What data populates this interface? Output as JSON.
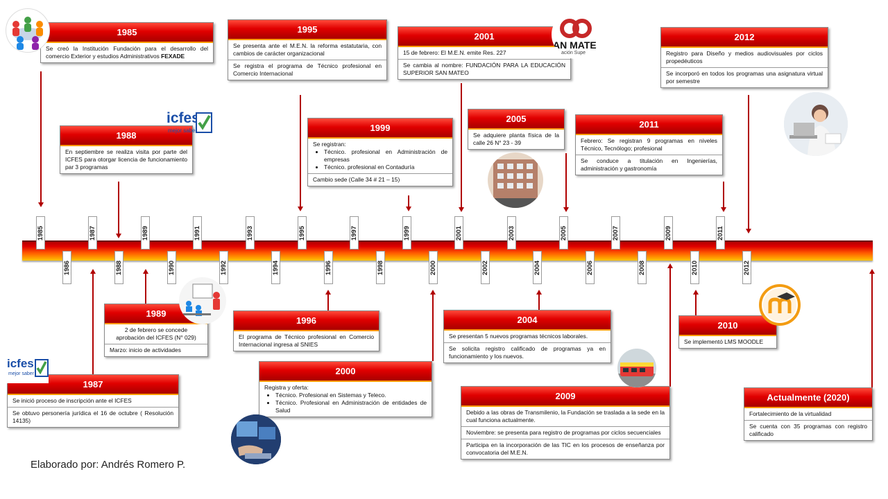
{
  "ticks": [
    {
      "year": "1985",
      "pos": "up"
    },
    {
      "year": "1986",
      "pos": "down"
    },
    {
      "year": "1987",
      "pos": "up"
    },
    {
      "year": "1988",
      "pos": "down"
    },
    {
      "year": "1989",
      "pos": "up"
    },
    {
      "year": "1990",
      "pos": "down"
    },
    {
      "year": "1991",
      "pos": "up"
    },
    {
      "year": "1992",
      "pos": "down"
    },
    {
      "year": "1993",
      "pos": "up"
    },
    {
      "year": "1994",
      "pos": "down"
    },
    {
      "year": "1995",
      "pos": "up"
    },
    {
      "year": "1996",
      "pos": "down"
    },
    {
      "year": "1997",
      "pos": "up"
    },
    {
      "year": "1998",
      "pos": "down"
    },
    {
      "year": "1999",
      "pos": "up"
    },
    {
      "year": "2000",
      "pos": "down"
    },
    {
      "year": "2001",
      "pos": "up"
    },
    {
      "year": "2002",
      "pos": "down"
    },
    {
      "year": "2003",
      "pos": "up"
    },
    {
      "year": "2004",
      "pos": "down"
    },
    {
      "year": "2005",
      "pos": "up"
    },
    {
      "year": "2006",
      "pos": "down"
    },
    {
      "year": "2007",
      "pos": "up"
    },
    {
      "year": "2008",
      "pos": "down"
    },
    {
      "year": "2009",
      "pos": "up"
    },
    {
      "year": "2010",
      "pos": "down"
    },
    {
      "year": "2011",
      "pos": "up"
    },
    {
      "year": "2012",
      "pos": "down"
    }
  ],
  "events": {
    "e1985": {
      "title": "1985",
      "r1": "Se creó la Institución Fundación para el desarrollo del comercio Exterior  y estudios Administrativos ",
      "r1b": "FEXADE"
    },
    "e1988": {
      "title": "1988",
      "r1": "En septiembre se realiza visita por parte del ICFES para otorgar licencia de funcionamiento par 3 programas"
    },
    "e1995": {
      "title": "1995",
      "r1": "Se presenta ante el M.E.N. la reforma estatutaria, con cambios de carácter organizacional",
      "r2": "Se registra el programa de Técnico profesional en Comercio Internacional"
    },
    "e1999": {
      "title": "1999",
      "r1": "Se registran:",
      "b1": "Técnico. profesional en Administración de empresas",
      "b2": "Técnico. profesional en Contaduría",
      "r2": "Cambio sede (Calle 34 # 21 – 15)"
    },
    "e2001": {
      "title": "2001",
      "r1": "15 de febrero: El M.E.N. emite Res. 227",
      "r2": "Se cambia al nombre: FUNDACIÓN PARA LA EDUCACIÓN SUPERIOR SAN MATEO"
    },
    "e2005": {
      "title": "2005",
      "r1": "Se adquiere planta física de la calle 26 N° 23 - 39"
    },
    "e2011": {
      "title": "2011",
      "r1": "Febrero: Se registran 9 programas en niveles Técnico, Tecnólogo; profesional",
      "r2": "Se conduce a titulación en Ingenierías, administración y gastronomía"
    },
    "e2012": {
      "title": "2012",
      "r1": "Registro para Diseño y medios audiovisuales por ciclos propedéuticos",
      "r2": "Se incorporó en todos los programas una asignatura virtual por semestre"
    },
    "e1989": {
      "title": "1989",
      "r1": "2 de febrero se concede aprobación del ICFES (N° 029)",
      "r2": "Marzo: inicio de actividades"
    },
    "e1987": {
      "title": "1987",
      "r1": "Se inició proceso de inscripción ante el ICFES",
      "r2": "Se obtuvo personería jurídica el 16 de octubre ( Resolución 14135)"
    },
    "e1996": {
      "title": "1996",
      "r1": "El programa de Técnico profesional en Comercio Internacional ingresa al SNIES"
    },
    "e2000": {
      "title": "2000",
      "r1": "Registra y oferta:",
      "b1": "Técnico. Profesional en Sistemas y Teleco.",
      "b2": "Técnico. Profesional en Administración de entidades de Salud"
    },
    "e2004": {
      "title": "2004",
      "r1": "Se presentan 5 nuevos programas técnicos laborales.",
      "r2": "Se solicita registro calificado de programas ya en funcionamiento y los nuevos."
    },
    "e2009": {
      "title": "2009",
      "r1": "Debido a las obras de Transmilenio, la Fundación se traslada a la sede en la cual funciona actualmente.",
      "r2": "Noviembre: se presenta para registro de programas por ciclos secuenciales",
      "r3": "Participa en la incorporación de las TIC en los procesos de enseñanza por convocatoria del M.E.N."
    },
    "e2010": {
      "title": "2010",
      "r1": "Se implementó LMS MOODLE"
    },
    "e2020": {
      "title": "Actualmente (2020)",
      "r1": "Fortalecimiento de la virtualidad",
      "r2": "Se cuenta con 35 programas con registro calificado"
    }
  },
  "logos": {
    "icfes_text": "icfes",
    "icfes_sub": "mejor saber",
    "sanmateo_text": "AN MATE",
    "sanmateo_sub": "ación Supe"
  },
  "author": "Elaborado por: Andrés Romero P.",
  "colors": {
    "header_red": "#e00000",
    "header_dark": "#a80000",
    "band_yellow": "#ffc400",
    "connector": "#b00000"
  }
}
